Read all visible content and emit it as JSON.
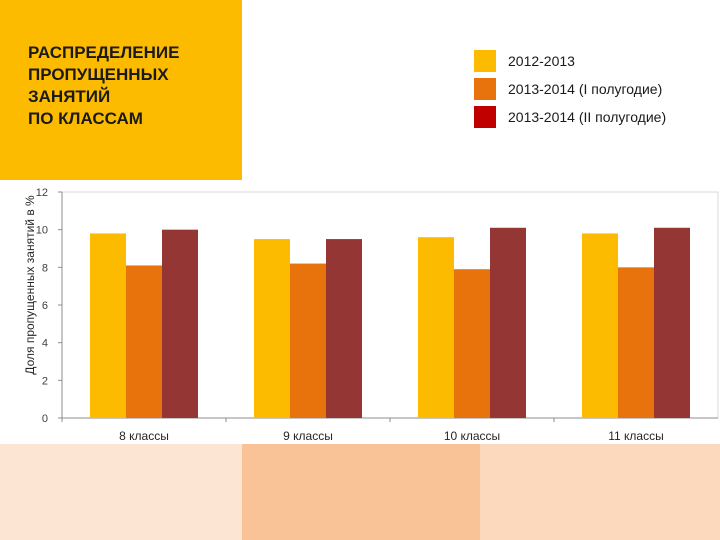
{
  "title": "РАСПРЕДЕЛЕНИЕ\nПРОПУЩЕННЫХ\nЗАНЯТИЙ\nПО КЛАССАМ",
  "colors": {
    "title_bg": "#FDBB00",
    "footer": [
      "#FDE5D3",
      "#F9C397",
      "#FCD9BD"
    ]
  },
  "chart_data": {
    "type": "bar",
    "categories": [
      "8 классы",
      "9 классы",
      "10 классы",
      "11 классы"
    ],
    "series": [
      {
        "name": "2012-2013",
        "color": "#FDBB00",
        "values": [
          9.8,
          9.5,
          9.6,
          9.8
        ]
      },
      {
        "name": "2013-2014  (I полугодие)",
        "color": "#E8730C",
        "values": [
          8.1,
          8.2,
          7.9,
          8.0
        ]
      },
      {
        "name": "2013-2014  (II полугодие)",
        "color": "#943634",
        "values": [
          10.0,
          9.5,
          10.1,
          10.1
        ]
      }
    ],
    "legend_colors": [
      "#FDBB00",
      "#E8730C",
      "#C00000"
    ],
    "ylabel": "Доля пропущенных занятий в %",
    "xlabel": "",
    "ylim": [
      0,
      12
    ],
    "yticks": [
      0,
      2,
      4,
      6,
      8,
      10,
      12
    ],
    "grid": false,
    "legend_position": "top-right"
  }
}
